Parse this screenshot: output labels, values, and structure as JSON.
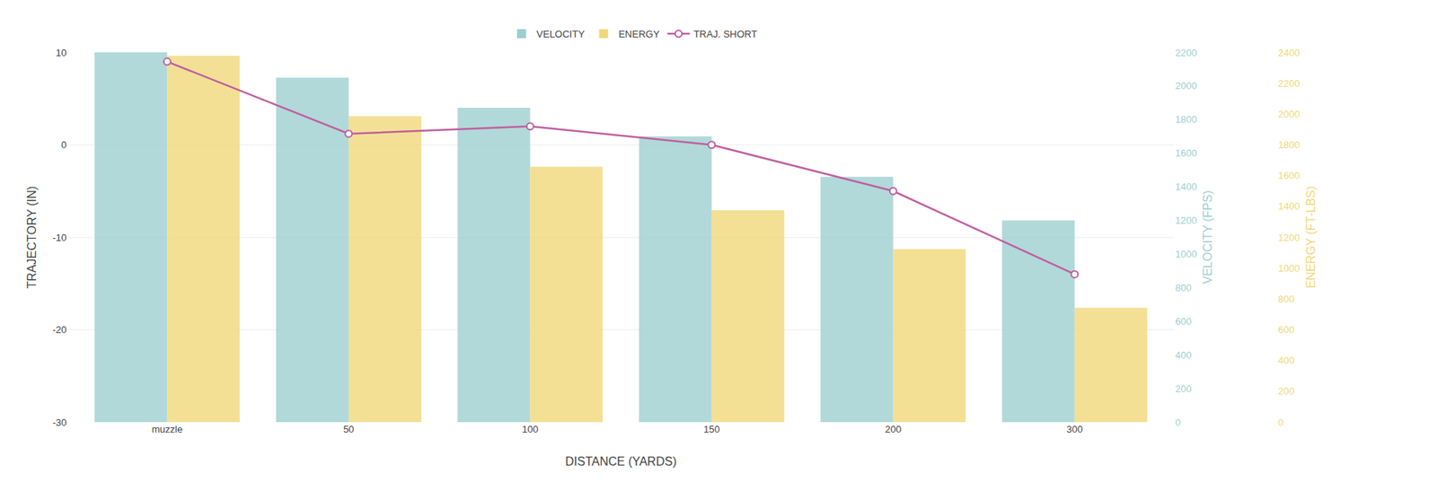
{
  "chart_data": {
    "type": "bar",
    "categories": [
      "muzzle",
      "50",
      "100",
      "150",
      "200",
      "300"
    ],
    "series": [
      {
        "name": "VELOCITY",
        "type": "bar",
        "color": "#9DCFCF",
        "axis": "y2",
        "values": [
          2200,
          2050,
          1870,
          1700,
          1460,
          1200
        ]
      },
      {
        "name": "ENERGY",
        "type": "bar",
        "color": "#F0D87A",
        "axis": "y2",
        "values": [
          2180,
          1820,
          1520,
          1260,
          1030,
          680
        ]
      },
      {
        "name": "TRAJ. SHORT",
        "type": "line",
        "color": "#C060A0",
        "marker": "circle",
        "values": [
          9.0,
          1.2,
          2.0,
          0.0,
          -5.0,
          -14.0
        ]
      }
    ],
    "xlabel": "DISTANCE (YARDS)",
    "ylabel": "TRAJECTORY (IN)",
    "y2label": "VELOCITY (FPS)",
    "y3label": "ENERGY (FT-LBS)",
    "ylim": [
      -30,
      10
    ],
    "yticks": [
      -30,
      -20,
      -10,
      0,
      10
    ],
    "y2lim": [
      0,
      2200
    ],
    "y2ticks": [
      0,
      200,
      400,
      600,
      800,
      1000,
      1200,
      1400,
      1600,
      1800,
      2000,
      2200
    ],
    "y3lim": [
      0,
      2400
    ],
    "y3ticks": [
      0,
      200,
      400,
      600,
      800,
      1000,
      1200,
      1400,
      1600,
      1800,
      2000,
      2200,
      2400
    ],
    "grid": true,
    "legend": "top"
  }
}
